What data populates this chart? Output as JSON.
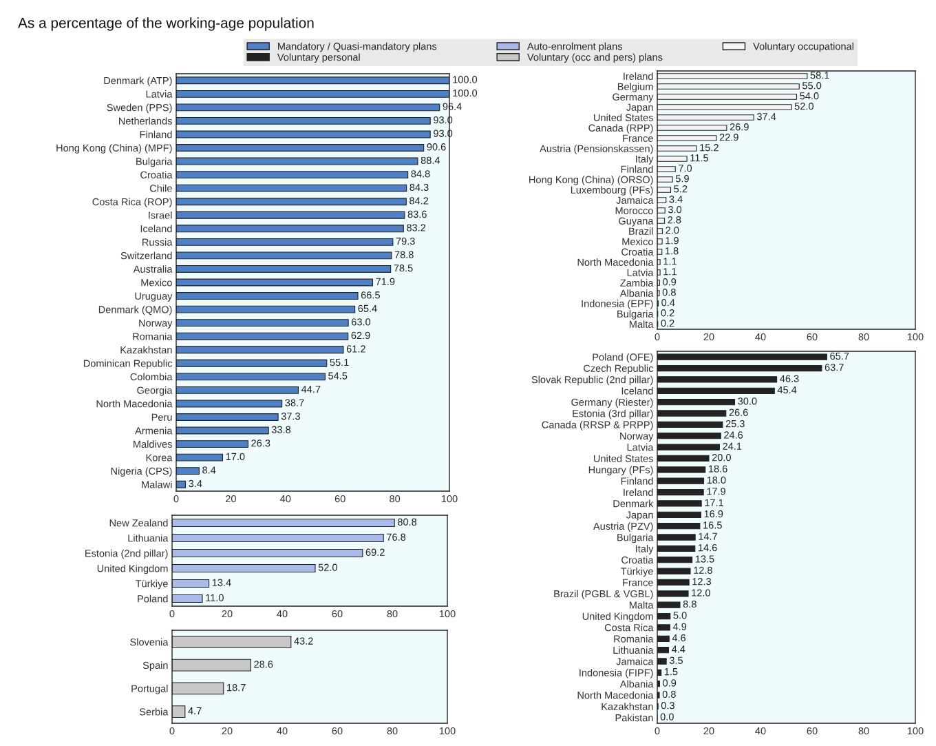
{
  "chart_data": [
    {
      "type": "bar",
      "orientation": "horizontal",
      "title": "As a percentage of the working-age population",
      "legend": "top",
      "xlim": [
        0,
        100
      ],
      "xticks": [
        0,
        20,
        40,
        60,
        80,
        100
      ],
      "categories": [
        "Denmark (ATP)",
        "Latvia",
        "Sweden (PPS)",
        "Netherlands",
        "Finland",
        "Hong Kong (China) (MPF)",
        "Bulgaria",
        "Croatia",
        "Chile",
        "Costa Rica (ROP)",
        "Israel",
        "Iceland",
        "Russia",
        "Switzerland",
        "Australia",
        "Mexico",
        "Uruguay",
        "Denmark (QMO)",
        "Norway",
        "Romania",
        "Kazakhstan",
        "Dominican Republic",
        "Colombia",
        "Georgia",
        "North Macedonia",
        "Peru",
        "Armenia",
        "Maldives",
        "Korea",
        "Nigeria (CPS)",
        "Malawi"
      ],
      "series": [
        {
          "name": "Mandatory / Quasi-mandatory plans",
          "color": "#4f7fc4",
          "values": [
            100,
            100,
            96.4,
            93,
            93,
            90.6,
            88.4,
            84.8,
            84.3,
            84.2,
            83.6,
            83.2,
            79.3,
            78.8,
            78.5,
            71.9,
            66.5,
            65.4,
            63,
            62.9,
            61.2,
            55.1,
            54.5,
            44.7,
            38.7,
            37.3,
            33.8,
            26.3,
            17,
            8.4,
            3.4
          ],
          "value_labels": [
            "100.0",
            "100.0",
            "96.4",
            "93.0",
            "93.0",
            "90.6",
            "88.4",
            "84.8",
            "84.3",
            "84.2",
            "83.6",
            "83.2",
            "79.3",
            "78.8",
            "78.5",
            "71.9",
            "66.5",
            "65.4",
            "63.0",
            "62.9",
            "61.2",
            "55.1",
            "54.5",
            "44.7",
            "38.7",
            "37.3",
            "33.8",
            "26.3",
            "17.0",
            "8.4",
            "3.4"
          ]
        }
      ]
    },
    {
      "type": "bar",
      "orientation": "horizontal",
      "legend": "top",
      "xlim": [
        0,
        100
      ],
      "xticks": [
        0,
        20,
        40,
        60,
        80,
        100
      ],
      "categories": [
        "New Zealand",
        "Lithuania",
        "Estonia (2nd pillar)",
        "United Kingdom",
        "Türkiye",
        "Poland"
      ],
      "series": [
        {
          "name": "Auto-enrolment plans",
          "color": "#a9b9e8",
          "values": [
            80.8,
            76.8,
            69.2,
            52,
            13.4,
            11
          ],
          "value_labels": [
            "80.8",
            "76.8",
            "69.2",
            "52.0",
            "13.4",
            "11.0"
          ]
        }
      ]
    },
    {
      "type": "bar",
      "orientation": "horizontal",
      "legend": "top",
      "xlim": [
        0,
        100
      ],
      "xticks": [
        0,
        20,
        40,
        60,
        80,
        100
      ],
      "categories": [
        "Ireland",
        "Belgium",
        "Germany",
        "Japan",
        "United States",
        "Canada (RPP)",
        "France",
        "Austria (Pensionskassen)",
        "Italy",
        "Finland",
        "Hong Kong (China) (ORSO)",
        "Luxembourg (PFs)",
        "Jamaica",
        "Morocco",
        "Guyana",
        "Brazil",
        "Mexico",
        "Croatia",
        "North Macedonia",
        "Latvia",
        "Zambia",
        "Albania",
        "Indonesia (EPF)",
        "Bulgaria",
        "Malta"
      ],
      "series": [
        {
          "name": "Voluntary occupational",
          "color": "#f4f4f4",
          "values": [
            58.1,
            55,
            54,
            52,
            37.4,
            26.9,
            22.9,
            15.2,
            11.5,
            7,
            5.9,
            5.2,
            3.4,
            3,
            2.8,
            2,
            1.9,
            1.8,
            1.1,
            1.1,
            0.9,
            0.8,
            0.4,
            0.2,
            0.2
          ],
          "value_labels": [
            "58.1",
            "55.0",
            "54.0",
            "52.0",
            "37.4",
            "26.9",
            "22.9",
            "15.2",
            "11.5",
            "7.0",
            "5.9",
            "5.2",
            "3.4",
            "3.0",
            "2.8",
            "2.0",
            "1.9",
            "1.8",
            "1.1",
            "1.1",
            "0.9",
            "0.8",
            "0.4",
            "0.2",
            "0.2"
          ]
        }
      ]
    },
    {
      "type": "bar",
      "orientation": "horizontal",
      "legend": "top",
      "xlim": [
        0,
        100
      ],
      "xticks": [
        0,
        20,
        40,
        60,
        80,
        100
      ],
      "categories": [
        "Poland (OFE)",
        "Czech Republic",
        "Slovak Republic (2nd pillar)",
        "Iceland",
        "Germany (Riester)",
        "Estonia (3rd pillar)",
        "Canada (RRSP & PRPP)",
        "Norway",
        "Latvia",
        "United States",
        "Hungary (PFs)",
        "Finland",
        "Ireland",
        "Denmark",
        "Japan",
        "Austria (PZV)",
        "Bulgaria",
        "Italy",
        "Croatia",
        "Türkiye",
        "France",
        "Brazil (PGBL & VGBL)",
        "Malta",
        "United Kingdom",
        "Costa Rica",
        "Romania",
        "Lithuania",
        "Jamaica",
        "Indonesia (FIPF)",
        "Albania",
        "North Macedonia",
        "Kazakhstan",
        "Pakistan"
      ],
      "series": [
        {
          "name": "Voluntary personal",
          "color": "#222222",
          "values": [
            65.7,
            63.7,
            46.3,
            45.4,
            30,
            26.6,
            25.3,
            24.6,
            24.1,
            20,
            18.6,
            18,
            17.9,
            17.1,
            16.9,
            16.5,
            14.7,
            14.6,
            13.5,
            12.8,
            12.3,
            12,
            8.8,
            5,
            4.9,
            4.6,
            4.4,
            3.5,
            1.5,
            0.9,
            0.8,
            0.3,
            0
          ],
          "value_labels": [
            "65.7",
            "63.7",
            "46.3",
            "45.4",
            "30.0",
            "26.6",
            "25.3",
            "24.6",
            "24.1",
            "20.0",
            "18.6",
            "18.0",
            "17.9",
            "17.1",
            "16.9",
            "16.5",
            "14.7",
            "14.6",
            "13.5",
            "12.8",
            "12.3",
            "12.0",
            "8.8",
            "5.0",
            "4.9",
            "4.6",
            "4.4",
            "3.5",
            "1.5",
            "0.9",
            "0.8",
            "0.3",
            "0.0"
          ]
        }
      ]
    },
    {
      "type": "bar",
      "orientation": "horizontal",
      "legend": "top",
      "xlim": [
        0,
        100
      ],
      "xticks": [
        0,
        20,
        40,
        60,
        80,
        100
      ],
      "categories": [
        "Slovenia",
        "Spain",
        "Portugal",
        "Serbia"
      ],
      "series": [
        {
          "name": "Voluntary (occ and pers) plans",
          "color": "#c8c8c8",
          "values": [
            43.2,
            28.6,
            18.7,
            4.7
          ],
          "value_labels": [
            "43.2",
            "28.6",
            "18.7",
            "4.7"
          ]
        }
      ]
    }
  ]
}
